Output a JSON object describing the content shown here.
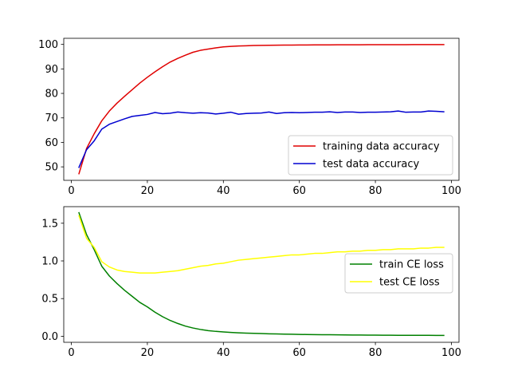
{
  "chart_data": [
    {
      "type": "line",
      "title": "",
      "xlabel": "",
      "ylabel": "",
      "xlim": [
        -2,
        102
      ],
      "ylim": [
        44.5,
        102.5
      ],
      "xticks": [
        0,
        20,
        40,
        60,
        80,
        100
      ],
      "yticks": [
        50,
        60,
        70,
        80,
        90,
        100
      ],
      "grid": false,
      "legend_position": "lower-right",
      "series": [
        {
          "name": "training data accuracy",
          "color": "#e00000",
          "x": [
            2,
            4,
            6,
            8,
            10,
            12,
            14,
            16,
            18,
            20,
            22,
            24,
            26,
            28,
            30,
            32,
            34,
            36,
            38,
            40,
            42,
            44,
            46,
            48,
            50,
            52,
            54,
            56,
            58,
            60,
            62,
            64,
            66,
            68,
            70,
            72,
            74,
            76,
            78,
            80,
            82,
            84,
            86,
            88,
            90,
            92,
            94,
            96,
            98
          ],
          "y": [
            47.2,
            57.5,
            63.5,
            68.8,
            72.8,
            76.0,
            78.8,
            81.5,
            84.2,
            86.6,
            88.8,
            90.9,
            92.8,
            94.3,
            95.6,
            96.8,
            97.6,
            98.1,
            98.6,
            99.0,
            99.2,
            99.35,
            99.45,
            99.55,
            99.6,
            99.65,
            99.7,
            99.72,
            99.74,
            99.76,
            99.78,
            99.8,
            99.82,
            99.83,
            99.84,
            99.85,
            99.86,
            99.87,
            99.88,
            99.89,
            99.9,
            99.9,
            99.91,
            99.91,
            99.92,
            99.92,
            99.93,
            99.93,
            99.94
          ]
        },
        {
          "name": "test data accuracy",
          "color": "#0000d0",
          "x": [
            2,
            4,
            6,
            8,
            10,
            12,
            14,
            16,
            18,
            20,
            22,
            24,
            26,
            28,
            30,
            32,
            34,
            36,
            38,
            40,
            42,
            44,
            46,
            48,
            50,
            52,
            54,
            56,
            58,
            60,
            62,
            64,
            66,
            68,
            70,
            72,
            74,
            76,
            78,
            80,
            82,
            84,
            86,
            88,
            90,
            92,
            94,
            96,
            98
          ],
          "y": [
            49.8,
            57.0,
            60.6,
            65.4,
            67.4,
            68.5,
            69.6,
            70.6,
            71.0,
            71.4,
            72.2,
            71.7,
            71.9,
            72.4,
            72.1,
            71.9,
            72.1,
            72.0,
            71.6,
            71.9,
            72.3,
            71.5,
            71.8,
            71.9,
            72.0,
            72.4,
            71.8,
            72.1,
            72.2,
            72.1,
            72.2,
            72.3,
            72.3,
            72.5,
            72.2,
            72.4,
            72.4,
            72.2,
            72.3,
            72.3,
            72.4,
            72.5,
            72.8,
            72.3,
            72.4,
            72.4,
            72.8,
            72.7,
            72.5
          ]
        }
      ]
    },
    {
      "type": "line",
      "title": "",
      "xlabel": "",
      "ylabel": "",
      "xlim": [
        -2,
        102
      ],
      "ylim": [
        -0.08,
        1.72
      ],
      "xticks": [
        0,
        20,
        40,
        60,
        80,
        100
      ],
      "yticks": [
        0.0,
        0.5,
        1.0,
        1.5
      ],
      "ytick_labels": [
        "0.0",
        "0.5",
        "1.0",
        "1.5"
      ],
      "grid": false,
      "legend_position": "center-right",
      "series": [
        {
          "name": "train CE loss",
          "color": "#008000",
          "x": [
            2,
            4,
            6,
            8,
            10,
            12,
            14,
            16,
            18,
            20,
            22,
            24,
            26,
            28,
            30,
            32,
            34,
            36,
            38,
            40,
            42,
            44,
            46,
            48,
            50,
            52,
            54,
            56,
            58,
            60,
            62,
            64,
            66,
            68,
            70,
            72,
            74,
            76,
            78,
            80,
            82,
            84,
            86,
            88,
            90,
            92,
            94,
            96,
            98
          ],
          "y": [
            1.64,
            1.35,
            1.15,
            0.93,
            0.8,
            0.7,
            0.61,
            0.53,
            0.45,
            0.39,
            0.32,
            0.26,
            0.21,
            0.17,
            0.135,
            0.11,
            0.09,
            0.075,
            0.065,
            0.058,
            0.051,
            0.046,
            0.042,
            0.039,
            0.036,
            0.033,
            0.031,
            0.029,
            0.027,
            0.025,
            0.023,
            0.022,
            0.021,
            0.02,
            0.019,
            0.018,
            0.017,
            0.016,
            0.015,
            0.015,
            0.014,
            0.014,
            0.013,
            0.013,
            0.012,
            0.012,
            0.012,
            0.011,
            0.011
          ]
        },
        {
          "name": "test CE loss",
          "color": "#ffff00",
          "x": [
            2,
            4,
            6,
            8,
            10,
            12,
            14,
            16,
            18,
            20,
            22,
            24,
            26,
            28,
            30,
            32,
            34,
            36,
            38,
            40,
            42,
            44,
            46,
            48,
            50,
            52,
            54,
            56,
            58,
            60,
            62,
            64,
            66,
            68,
            70,
            72,
            74,
            76,
            78,
            80,
            82,
            84,
            86,
            88,
            90,
            92,
            94,
            96,
            98
          ],
          "y": [
            1.6,
            1.3,
            1.18,
            0.99,
            0.92,
            0.88,
            0.86,
            0.85,
            0.84,
            0.84,
            0.84,
            0.85,
            0.86,
            0.87,
            0.89,
            0.91,
            0.93,
            0.94,
            0.96,
            0.97,
            0.99,
            1.01,
            1.02,
            1.03,
            1.04,
            1.05,
            1.06,
            1.07,
            1.08,
            1.08,
            1.09,
            1.1,
            1.1,
            1.11,
            1.12,
            1.12,
            1.13,
            1.13,
            1.14,
            1.14,
            1.15,
            1.15,
            1.16,
            1.16,
            1.16,
            1.17,
            1.17,
            1.18,
            1.18
          ]
        }
      ]
    }
  ]
}
